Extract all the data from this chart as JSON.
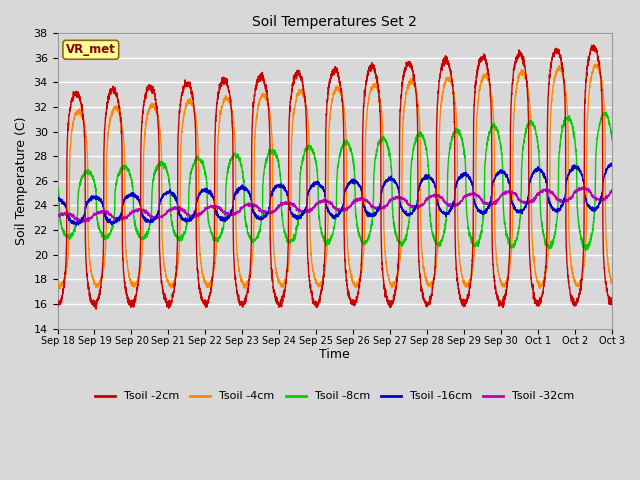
{
  "title": "Soil Temperatures Set 2",
  "xlabel": "Time",
  "ylabel": "Soil Temperature (C)",
  "ylim": [
    14,
    38
  ],
  "yticks": [
    14,
    16,
    18,
    20,
    22,
    24,
    26,
    28,
    30,
    32,
    34,
    36,
    38
  ],
  "annotation": "VR_met",
  "series_colors": {
    "Tsoil -2cm": "#cc0000",
    "Tsoil -4cm": "#ff8800",
    "Tsoil -8cm": "#00cc00",
    "Tsoil -16cm": "#0000cc",
    "Tsoil -32cm": "#bb00bb"
  },
  "bg_color": "#d8d8d8",
  "plot_bg_color": "#d8d8d8",
  "grid_color": "#ffffff",
  "x_labels": [
    "Sep 18",
    "Sep 19",
    "Sep 20",
    "Sep 21",
    "Sep 22",
    "Sep 23",
    "Sep 24",
    "Sep 25",
    "Sep 26",
    "Sep 27",
    "Sep 28",
    "Sep 29",
    "Sep 30",
    "Oct 1",
    "Oct 2",
    "Oct 3"
  ],
  "n_days": 15
}
